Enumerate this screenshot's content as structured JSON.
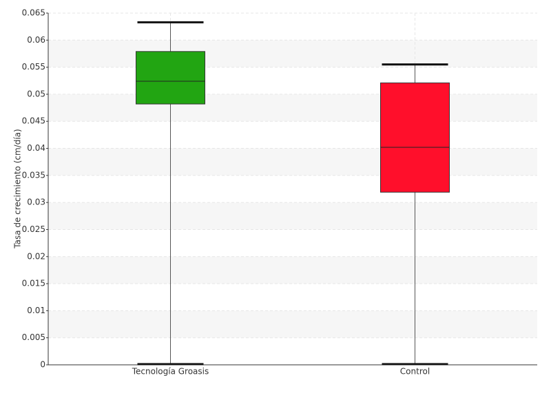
{
  "chart_data": {
    "type": "box",
    "y_label": "Tasa de crecimiento (cm/día)",
    "categories": [
      "Tecnología Groasis",
      "Control"
    ],
    "boxes": [
      {
        "min": 0,
        "q1": 0.0482,
        "median": 0.0524,
        "q3": 0.0579,
        "max": 0.0633,
        "color": "#22a512"
      },
      {
        "min": 0,
        "q1": 0.0319,
        "median": 0.0402,
        "q3": 0.0521,
        "max": 0.0555,
        "color": "#ff0f2b"
      }
    ],
    "ylim": [
      0,
      0.065
    ],
    "yticks": [
      0,
      0.005,
      0.01,
      0.015,
      0.02,
      0.025,
      0.03,
      0.035,
      0.04,
      0.045,
      0.05,
      0.055,
      0.06,
      0.065
    ],
    "grid": true
  }
}
